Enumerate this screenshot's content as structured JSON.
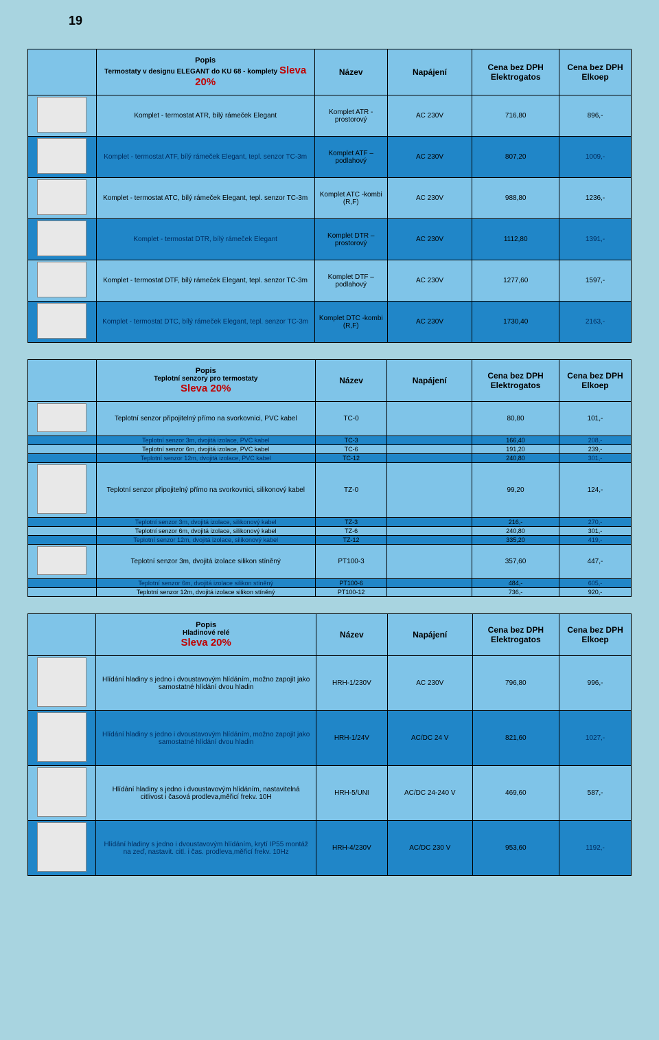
{
  "page_number": "19",
  "headers": {
    "nazev": "Název",
    "napajeni": "Napájení",
    "cena1": "Cena bez DPH Elektrogatos",
    "cena2": "Cena bez DPH Elkoep"
  },
  "table1": {
    "popis_title": "Popis",
    "popis_sub": "Termostaty v designu ELEGANT do KU 68 - komplety",
    "sleva": "Sleva 20%",
    "rows": [
      {
        "d": "Komplet - termostat ATR, bílý rámeček Elegant",
        "n": "Komplet ATR - prostorový",
        "p": "AC 230V",
        "c1": "716,80",
        "c2": "896,-",
        "cls": "r-light"
      },
      {
        "d": "Komplet - termostat ATF, bílý rámeček Elegant, tepl. senzor TC-3m",
        "n": "Komplet ATF – podlahový",
        "p": "AC 230V",
        "c1": "807,20",
        "c2": "1009,-",
        "cls": "r-dark"
      },
      {
        "d": "Komplet - termostat ATC, bílý rámeček Elegant, tepl. senzor TC-3m",
        "n": "Komplet ATC -kombi (R,F)",
        "p": "AC 230V",
        "c1": "988,80",
        "c2": "1236,-",
        "cls": "r-light"
      },
      {
        "d": "Komplet - termostat DTR, bílý rámeček Elegant",
        "n": "Komplet DTR – prostorový",
        "p": "AC 230V",
        "c1": "1112,80",
        "c2": "1391,-",
        "cls": "r-dark"
      },
      {
        "d": "Komplet - termostat DTF, bílý rámeček Elegant, tepl. senzor TC-3m",
        "n": "Komplet DTF – podlahový",
        "p": "AC 230V",
        "c1": "1277,60",
        "c2": "1597,-",
        "cls": "r-light"
      },
      {
        "d": "Komplet - termostat DTC, bílý rámeček Elegant, tepl. senzor TC-3m",
        "n": "Komplet DTC -kombi (R,F)",
        "p": "AC 230V",
        "c1": "1730,40",
        "c2": "2163,-",
        "cls": "r-dark"
      }
    ]
  },
  "table2": {
    "popis_title": "Popis",
    "popis_sub": "Teplotní senzory pro termostaty",
    "sleva": "Sleva 20%",
    "groups": [
      {
        "img": true,
        "imgcls": "small",
        "main": {
          "d": "Teplotní senzor připojitelný přímo na svorkovnici, PVC kabel",
          "n": "TC-0",
          "p": "",
          "c1": "80,80",
          "c2": "101,-",
          "cls": "r-light"
        },
        "sub": [
          {
            "d": "Teplotní senzor 3m, dvojitá izolace, PVC kabel",
            "n": "TC-3",
            "p": "",
            "c1": "166,40",
            "c2": "208,-",
            "cls": "r-dark"
          },
          {
            "d": "Teplotní senzor 6m, dvojitá izolace, PVC kabel",
            "n": "TC-6",
            "p": "",
            "c1": "191,20",
            "c2": "239,-",
            "cls": "r-light"
          },
          {
            "d": "Teplotní senzor 12m, dvojitá izolace, PVC kabel",
            "n": "TC-12",
            "p": "",
            "c1": "240,80",
            "c2": "301,-",
            "cls": "r-dark"
          }
        ]
      },
      {
        "img": true,
        "imgcls": "tall",
        "main": {
          "d": "Teplotní senzor připojitelný přímo na svorkovnici, silikonový kabel",
          "n": "TZ-0",
          "p": "",
          "c1": "99,20",
          "c2": "124,-",
          "cls": "r-light"
        },
        "sub": [
          {
            "d": "Teplotní senzor 3m, dvojitá izolace, silikonový kabel",
            "n": "TZ-3",
            "p": "",
            "c1": "216,-",
            "c2": "270,-",
            "cls": "r-dark"
          },
          {
            "d": "Teplotní senzor 6m, dvojitá izolace, silikonový kabel",
            "n": "TZ-6",
            "p": "",
            "c1": "240,80",
            "c2": "301,-",
            "cls": "r-light"
          },
          {
            "d": "Teplotní senzor 12m, dvojitá izolace, silikonový kabel",
            "n": "TZ-12",
            "p": "",
            "c1": "335,20",
            "c2": "419,-",
            "cls": "r-dark"
          }
        ]
      },
      {
        "img": true,
        "imgcls": "small",
        "main": {
          "d": "Teplotní senzor 3m, dvojitá izolace silikon stíněný",
          "n": "PT100-3",
          "p": "",
          "c1": "357,60",
          "c2": "447,-",
          "cls": "r-light"
        },
        "sub": [
          {
            "d": "Teplotní senzor 6m, dvojitá izolace silikon stíněný",
            "n": "PT100-6",
            "p": "",
            "c1": "484,-",
            "c2": "605,-",
            "cls": "r-dark"
          },
          {
            "d": "Teplotní senzor 12m, dvojitá izolace silikon stíněný",
            "n": "PT100-12",
            "p": "",
            "c1": "736,-",
            "c2": "920,-",
            "cls": "r-light"
          }
        ]
      }
    ]
  },
  "table3": {
    "popis_title": "Popis",
    "popis_sub": "Hladinové relé",
    "sleva": "Sleva 20%",
    "rows": [
      {
        "d": "Hlídání hladiny s jedno i dvoustavovým hlídáním, možno zapojit jako samostatné hlídání dvou hladin",
        "n": "HRH-1/230V",
        "p": "AC 230V",
        "c1": "796,80",
        "c2": "996,-",
        "cls": "r-light"
      },
      {
        "d": "Hlídání hladiny s jedno i dvoustavovým hlídáním, možno zapojit jako samostatné hlídání dvou hladin",
        "n": "HRH-1/24V",
        "p": "AC/DC 24 V",
        "c1": "821,60",
        "c2": "1027,-",
        "cls": "r-dark"
      },
      {
        "d": "Hlídání hladiny s jedno i dvoustavovým hlídáním, nastavitelná citlivost i časová prodleva,měřicí frekv. 10H",
        "n": "HRH-5/UNI",
        "p": "AC/DC 24-240 V",
        "c1": "469,60",
        "c2": "587,-",
        "cls": "r-light"
      },
      {
        "d": "Hlídání hladiny s jedno i dvoustavovým hlídáním, krytí IP55 montáž na zeď, nastavit. citl. i čas. prodleva,měřicí frekv. 10Hz",
        "n": "HRH-4/230V",
        "p": "AC/DC 230 V",
        "c1": "953,60",
        "c2": "1192,-",
        "cls": "r-dark"
      }
    ]
  }
}
